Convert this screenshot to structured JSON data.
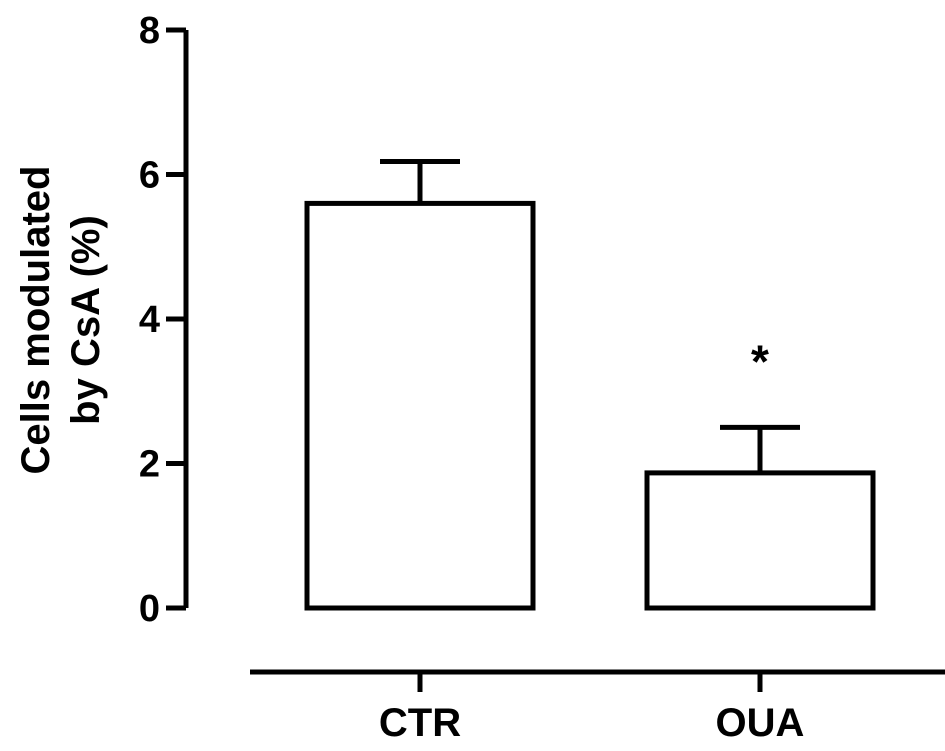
{
  "chart_data": {
    "type": "bar",
    "categories": [
      "CTR",
      "OUA"
    ],
    "values": [
      5.6,
      1.87
    ],
    "error_upper": [
      6.18,
      2.5
    ],
    "significance": [
      "",
      "*"
    ],
    "ylabel_lines": [
      "Cells modulated",
      "by CsA (%)"
    ],
    "xlabel": "",
    "ylim": [
      0,
      8
    ],
    "yticks": [
      0,
      2,
      4,
      6,
      8
    ],
    "grid": false,
    "bar_fill": "#ffffff",
    "bar_stroke": "#000000"
  }
}
